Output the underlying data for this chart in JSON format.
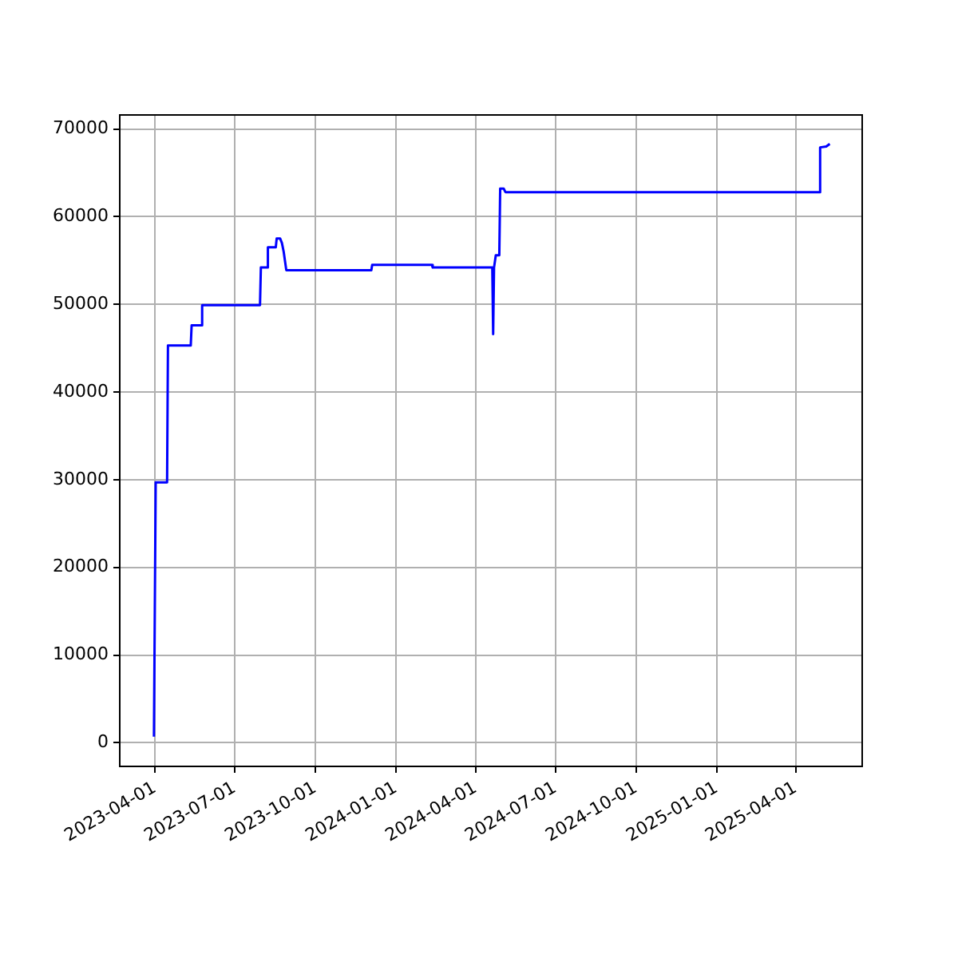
{
  "chart_data": {
    "type": "line",
    "x": [
      "2023-03-31",
      "2023-04-02",
      "2023-04-15",
      "2023-04-16",
      "2023-05-12",
      "2023-05-13",
      "2023-05-24",
      "2023-05-25",
      "2023-07-30",
      "2023-07-31",
      "2023-08-07",
      "2023-08-08",
      "2023-08-17",
      "2023-08-18",
      "2023-08-22",
      "2023-08-24",
      "2023-08-26",
      "2023-08-29",
      "2023-12-04",
      "2023-12-05",
      "2024-02-11",
      "2024-02-12",
      "2024-04-20",
      "2024-04-21",
      "2024-04-22",
      "2024-04-24",
      "2024-04-28",
      "2024-04-29",
      "2024-05-03",
      "2024-05-05",
      "2025-04-28",
      "2025-04-29",
      "2025-05-06",
      "2025-05-10"
    ],
    "series": [
      {
        "color": "#0000ff",
        "values": [
          700,
          29700,
          29700,
          45300,
          45300,
          47600,
          47600,
          49900,
          49900,
          54200,
          54200,
          56500,
          56500,
          57500,
          57500,
          57000,
          56000,
          53900,
          53900,
          54500,
          54500,
          54200,
          54200,
          46600,
          54200,
          55600,
          55600,
          63200,
          63200,
          62800,
          62800,
          67900,
          68000,
          68300
        ]
      }
    ],
    "xlim": [
      "2023-02-20",
      "2025-06-16"
    ],
    "xticks": [
      "2023-04-01",
      "2023-07-01",
      "2023-10-01",
      "2024-01-01",
      "2024-04-01",
      "2024-07-01",
      "2024-10-01",
      "2025-01-01",
      "2025-04-01"
    ],
    "ylim": [
      -2700,
      71600
    ],
    "yticks": [
      0,
      10000,
      20000,
      30000,
      40000,
      50000,
      60000,
      70000
    ],
    "grid": true,
    "legend": false,
    "marker": "none",
    "line_style": "solid"
  }
}
